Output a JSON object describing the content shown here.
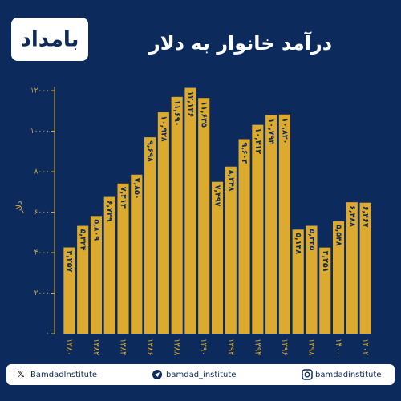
{
  "chart_data": {
    "type": "bar",
    "title": "درآمد خانوار به دلار",
    "y_label": "دلار",
    "categories": [
      "۱۳۸۰",
      null,
      "۱۳۸۲",
      null,
      "۱۳۸۴",
      null,
      "۱۳۸۶",
      null,
      "۱۳۸۸",
      null,
      "۱۳۹۰",
      null,
      "۱۳۹۲",
      null,
      "۱۳۹۴",
      null,
      "۱۳۹۶",
      null,
      "۱۳۹۸",
      null,
      "۱۴۰۰",
      null,
      "۱۴۰۲"
    ],
    "values": [
      4257,
      5324,
      5809,
      6749,
      7413,
      7850,
      9698,
      10928,
      11690,
      12136,
      11635,
      7497,
      8248,
      9604,
      10312,
      10793,
      10820,
      5138,
      5325,
      4251,
      5548,
      6488,
      6467
    ],
    "value_labels": [
      "۴,۲۵۷",
      "۵,۳۲۴",
      "۵,۸۰۹",
      "۶,۷۴۹",
      "۷,۴۱۳",
      "۷,۸۵۰",
      "۹,۶۹۸",
      "۱۰,۹۲۸",
      "۱۱,۶۹۰",
      "۱۲,۱۳۶",
      "۱۱,۶۳۵",
      "۷,۴۹۷",
      "۸,۲۴۸",
      "۹,۶۰۴",
      "۱۰,۳۱۲",
      "۱۰,۷۹۳",
      "۱۰,۸۲۰",
      "۵,۱۳۸",
      "۵,۳۲۵",
      "۴,۲۵۱",
      "۵,۵۴۸",
      "۶,۴۸۸",
      "۶,۴۶۷"
    ],
    "color": "#dcaa2f",
    "ylim": [
      0,
      12000
    ],
    "yticks": [
      {
        "value": 0,
        "label": "۰"
      },
      {
        "value": 2000,
        "label": "۲۰۰۰"
      },
      {
        "value": 4000,
        "label": "۴۰۰۰"
      },
      {
        "value": 6000,
        "label": "۶۰۰۰"
      },
      {
        "value": 8000,
        "label": "۸۰۰۰"
      },
      {
        "value": 10000,
        "label": "۱۰۰۰۰"
      },
      {
        "value": 12000,
        "label": "۱۲۰۰۰"
      }
    ],
    "grid": false
  },
  "logo": "بامداد",
  "footer": {
    "x": "BamdadInstitute",
    "telegram": "bamdad_institute",
    "instagram": "bamdadinstitute"
  }
}
